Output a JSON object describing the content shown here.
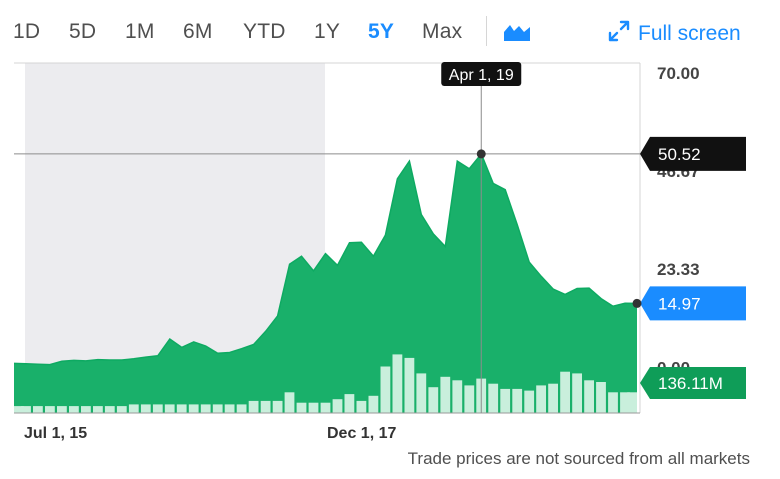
{
  "toolbar": {
    "ranges": [
      "1D",
      "5D",
      "1M",
      "6M",
      "YTD",
      "1Y",
      "5Y",
      "Max"
    ],
    "active_range": "5Y",
    "chart_type_icon": "area-chart-icon",
    "fullscreen_label": "Full screen",
    "fullscreen_icon": "expand-arrows-icon"
  },
  "footer_note": "Trade prices are not sourced from all markets",
  "colors": {
    "price_area": "#19b06a",
    "price_top": "#0eaa62",
    "volume": "#c9efdc",
    "shaded_region": "#ececef",
    "accent": "#1a8cff",
    "volume_badge": "#0f9d58"
  },
  "chart_data": {
    "type": "area",
    "x_tick_labels": [
      "Jul 1, 15",
      "Dec 1, 17"
    ],
    "y_tick_labels": [
      "70.00",
      "46.67",
      "23.33",
      "0.00"
    ],
    "ylim": [
      -11.1,
      70.0
    ],
    "grid": false,
    "crosshair": {
      "date_label": "Apr 1, 19",
      "value_label": "50.52",
      "value": 50.52
    },
    "last_price": {
      "label": "14.97",
      "value": 14.97
    },
    "volume_badge": "136.11M",
    "series": [
      {
        "values": [
          0.7,
          0.6,
          0.5,
          0.4,
          1.2,
          1.4,
          1.3,
          1.6,
          1.5,
          1.5,
          1.8,
          2.2,
          2.5,
          6.5,
          4.5,
          5.8,
          4.8,
          3.1,
          3.3,
          4.2,
          5.2,
          8.3,
          12.0,
          24.3,
          26.2,
          22.7,
          26.8,
          24.0,
          29.4,
          29.5,
          26.2,
          31.2,
          44.6,
          48.8,
          36.1,
          31.5,
          28.5,
          48.8,
          47.0,
          50.5,
          43.5,
          42.0,
          33.7,
          24.8,
          21.4,
          18.4,
          17.1,
          18.5,
          18.6,
          16.1,
          14.3,
          15.0,
          14.97
        ]
      },
      {
        "values": [
          4,
          4,
          4,
          4,
          4,
          4,
          4,
          4,
          4,
          4,
          5,
          5,
          5,
          5,
          5,
          5,
          5,
          5,
          5,
          5,
          7,
          7,
          7,
          12,
          6,
          6,
          6,
          8,
          11,
          7,
          10,
          27,
          34,
          32,
          23,
          15,
          21,
          19,
          16,
          20,
          17,
          14,
          14,
          13,
          16,
          17,
          24,
          23,
          19,
          18,
          12,
          12,
          12
        ]
      }
    ]
  }
}
